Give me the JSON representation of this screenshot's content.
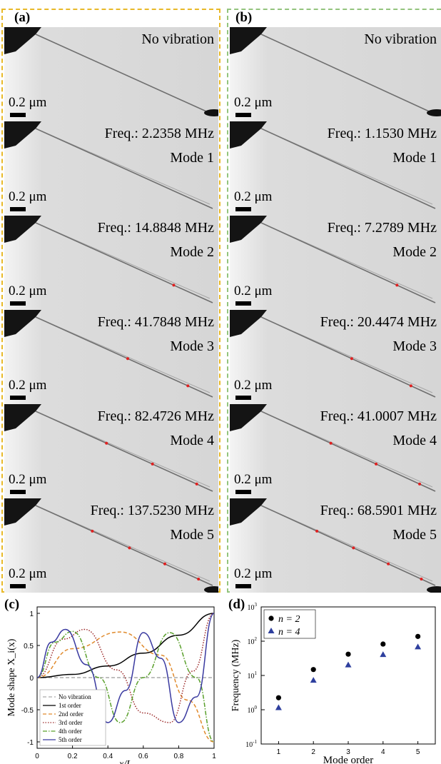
{
  "panels": {
    "a": {
      "label": "(a)",
      "tiles": [
        {
          "line1": "No vibration",
          "line2": "",
          "scale": "0.2 μm"
        },
        {
          "line1": "Freq.: 2.2358 MHz",
          "line2": "Mode 1",
          "scale": "0.2 μm"
        },
        {
          "line1": "Freq.: 14.8848 MHz",
          "line2": "Mode 2",
          "scale": "0.2 μm"
        },
        {
          "line1": "Freq.: 41.7848 MHz",
          "line2": "Mode 3",
          "scale": "0.2 μm"
        },
        {
          "line1": "Freq.: 82.4726 MHz",
          "line2": "Mode 4",
          "scale": "0.2 μm"
        },
        {
          "line1": "Freq.: 137.5230 MHz",
          "line2": "Mode 5",
          "scale": "0.2 μm"
        }
      ]
    },
    "b": {
      "label": "(b)",
      "tiles": [
        {
          "line1": "No vibration",
          "line2": "",
          "scale": "0.2 μm"
        },
        {
          "line1": "Freq.: 1.1530 MHz",
          "line2": "Mode 1",
          "scale": "0.2 μm"
        },
        {
          "line1": "Freq.: 7.2789 MHz",
          "line2": "Mode 2",
          "scale": "0.2 μm"
        },
        {
          "line1": "Freq.: 20.4474 MHz",
          "line2": "Mode 3",
          "scale": "0.2 μm"
        },
        {
          "line1": "Freq.: 41.0007 MHz",
          "line2": "Mode 4",
          "scale": "0.2 μm"
        },
        {
          "line1": "Freq.: 68.5901 MHz",
          "line2": "Mode 5",
          "scale": "0.2 μm"
        }
      ]
    },
    "c": {
      "label": "(c)"
    },
    "d": {
      "label": "(d)"
    }
  },
  "colors": {
    "panel_a_border": "#e8b928",
    "panel_b_border": "#93c47d",
    "node_dot": "#e02020"
  },
  "chart_data": [
    {
      "type": "line",
      "panel": "(c)",
      "xlabel": "x/L",
      "ylabel": "Mode shape X_i(x)",
      "xlim": [
        0,
        1
      ],
      "ylim": [
        -1.1,
        1.1
      ],
      "xticks": [
        "0",
        "0.2",
        "0.4",
        "0.6",
        "0.8",
        "1"
      ],
      "yticks": [
        "-1",
        "-0.5",
        "0",
        "0.5",
        "1"
      ],
      "legend": [
        "No vibration",
        "1st order",
        "2nd order",
        "3rd order",
        "4th order",
        "5th order"
      ],
      "legend_placement": "bottom-left",
      "series": [
        {
          "name": "No vibration",
          "color": "#aaaaaa",
          "dash": "dashed",
          "x": [
            0,
            1
          ],
          "y": [
            0,
            0
          ]
        },
        {
          "name": "1st order",
          "color": "#000000",
          "dash": "solid",
          "x": [
            0,
            0.2,
            0.4,
            0.6,
            0.8,
            1
          ],
          "y": [
            0,
            0.05,
            0.18,
            0.38,
            0.66,
            1
          ]
        },
        {
          "name": "2nd order",
          "color": "#e08a2c",
          "dash": "dashed",
          "x": [
            0,
            0.2,
            0.47,
            0.7,
            0.85,
            1
          ],
          "y": [
            0,
            0.45,
            0.71,
            0.35,
            -0.35,
            -1
          ]
        },
        {
          "name": "3rd order",
          "color": "#9c2a2a",
          "dash": "dotted",
          "x": [
            0,
            0.15,
            0.27,
            0.45,
            0.6,
            0.75,
            0.88,
            1
          ],
          "y": [
            0,
            0.6,
            0.75,
            0.12,
            -0.55,
            -0.7,
            0.1,
            1
          ]
        },
        {
          "name": "4th order",
          "color": "#5aa02c",
          "dash": "dashdot",
          "x": [
            0,
            0.1,
            0.2,
            0.35,
            0.47,
            0.6,
            0.75,
            0.9,
            1
          ],
          "y": [
            0,
            0.55,
            0.72,
            0.0,
            -0.7,
            0.0,
            0.7,
            0.0,
            -1
          ]
        },
        {
          "name": "5th order",
          "color": "#3a3aa0",
          "dash": "solid",
          "x": [
            0,
            0.08,
            0.16,
            0.28,
            0.4,
            0.5,
            0.6,
            0.7,
            0.8,
            0.9,
            1
          ],
          "y": [
            0,
            0.55,
            0.75,
            0.2,
            -0.7,
            -0.2,
            0.7,
            0.3,
            -0.7,
            -0.3,
            1
          ]
        }
      ]
    },
    {
      "type": "scatter",
      "panel": "(d)",
      "xlabel": "Mode order",
      "ylabel": "Frequency (MHz)",
      "yscale": "log",
      "xlim": [
        0.5,
        5.5
      ],
      "ylim": [
        0.1,
        1000
      ],
      "xticks": [
        "1",
        "2",
        "3",
        "4",
        "5"
      ],
      "legend_placement": "top-left",
      "series": [
        {
          "name": "n = 2",
          "marker": "circle",
          "color": "#000000",
          "x": [
            1,
            2,
            3,
            4,
            5
          ],
          "y": [
            2.2358,
            14.8848,
            41.7848,
            82.4726,
            137.523
          ]
        },
        {
          "name": "n = 4",
          "marker": "triangle",
          "color": "#2e3f9e",
          "x": [
            1,
            2,
            3,
            4,
            5
          ],
          "y": [
            1.153,
            7.2789,
            20.4474,
            41.0007,
            68.5901
          ]
        }
      ]
    }
  ]
}
